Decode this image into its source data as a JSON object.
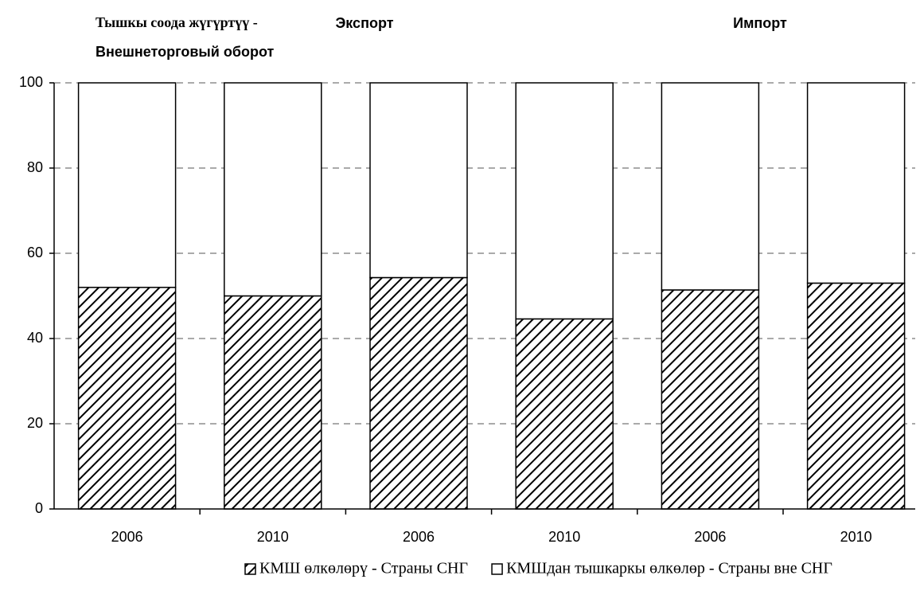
{
  "chart_data": {
    "type": "stacked_bar",
    "annotations": [
      "Тышкы соода жүгүртүү -",
      "Внешнеторговый оборот",
      "Экспорт",
      "Импорт"
    ],
    "categories": [
      "2006",
      "2010",
      "2006",
      "2010",
      "2006",
      "2010"
    ],
    "series": [
      {
        "name": "КМШ өлкөлөрү - Страны СНГ",
        "color": "#000000",
        "pattern": "diagonal",
        "values": [
          52,
          50,
          54.3,
          44.6,
          51.4,
          53
        ]
      },
      {
        "name": "КМШдан тышкаркы өлкөлөр - Страны вне СНГ",
        "color": "#ffffff",
        "values": [
          48,
          50,
          45.7,
          55.4,
          48.6,
          47
        ]
      }
    ],
    "ylim": [
      0,
      100
    ],
    "yticks": [
      0,
      20,
      40,
      60,
      80,
      100
    ],
    "grid": true
  }
}
